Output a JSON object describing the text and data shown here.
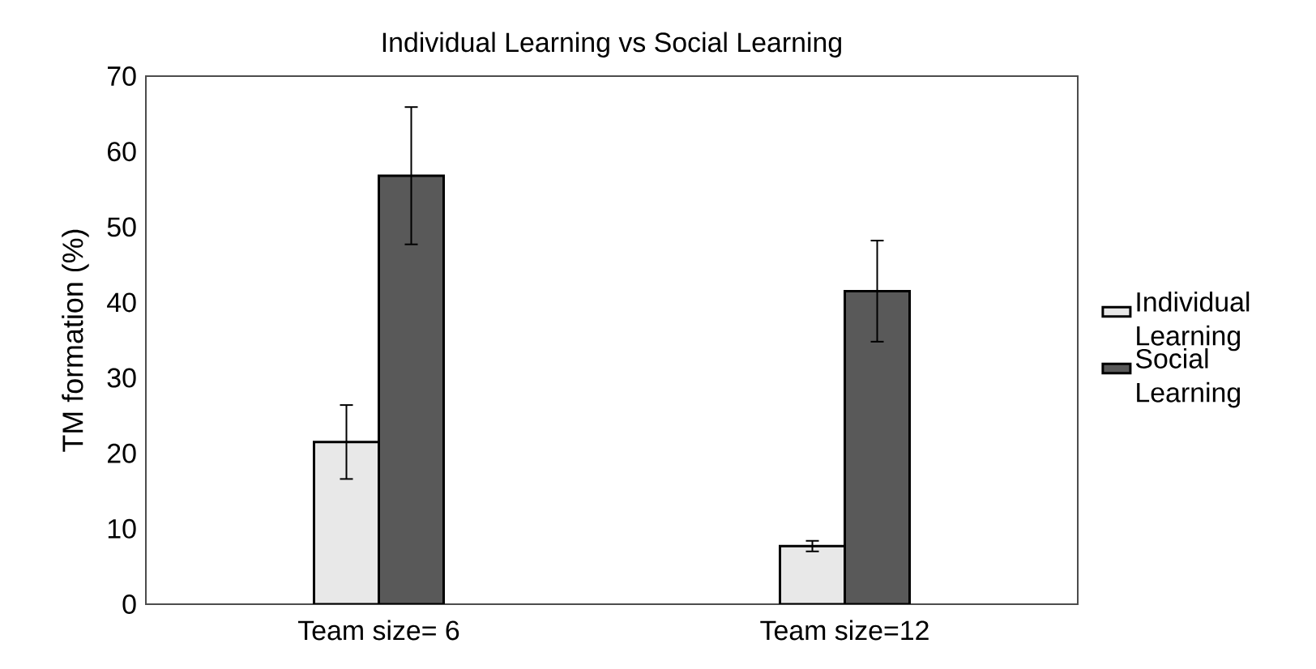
{
  "chart_data": {
    "type": "bar",
    "title": "Individual Learning vs Social Learning",
    "ylabel": "TM formation (%)",
    "categories": [
      "Team size= 6",
      "Team size=12"
    ],
    "series": [
      {
        "name": "Individual Learning",
        "color": "#e8e8e8",
        "values": [
          21.5,
          7.7
        ],
        "errors": [
          4.9,
          0.7
        ]
      },
      {
        "name": "Social Learning",
        "color": "#595959",
        "values": [
          56.8,
          41.5
        ],
        "errors": [
          9.1,
          6.7
        ]
      }
    ],
    "ylim": [
      0,
      70
    ],
    "yticks": [
      0,
      10,
      20,
      30,
      40,
      50,
      60,
      70
    ],
    "legend": "right"
  }
}
